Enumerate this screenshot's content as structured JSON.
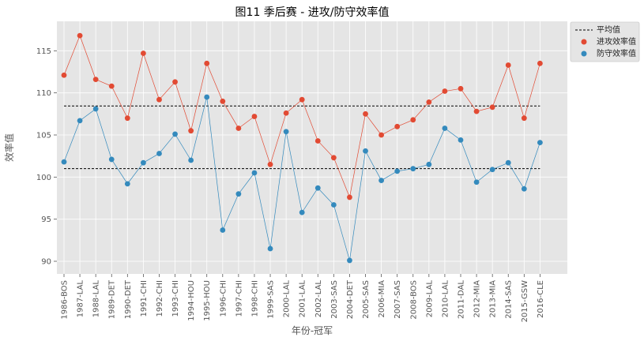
{
  "chart_data": {
    "type": "line",
    "title": "图11 季后赛 - 进攻/防守效率值",
    "xlabel": "年份-冠军",
    "ylabel": "效率值",
    "categories": [
      "1986-BOS",
      "1987-LAL",
      "1988-LAL",
      "1989-DET",
      "1990-DET",
      "1991-CHI",
      "1992-CHI",
      "1993-CHI",
      "1994-HOU",
      "1995-HOU",
      "1996-CHI",
      "1997-CHI",
      "1998-CHI",
      "1999-SAS",
      "2000-LAL",
      "2001-LAL",
      "2002-LAL",
      "2003-SAS",
      "2004-DET",
      "2005-SAS",
      "2006-MIA",
      "2007-SAS",
      "2008-BOS",
      "2009-LAL",
      "2010-LAL",
      "2011-DAL",
      "2012-MIA",
      "2013-MIA",
      "2014-SAS",
      "2015-GSW",
      "2016-CLE"
    ],
    "ylim": [
      88.5,
      118.5
    ],
    "yticks": [
      90,
      95,
      100,
      105,
      110,
      115
    ],
    "grid": true,
    "legend_position": "outside-right",
    "series": [
      {
        "name": "进攻效率值",
        "color": "#E24A33",
        "values": [
          112.1,
          116.8,
          111.6,
          110.8,
          107.0,
          114.7,
          109.2,
          111.3,
          105.5,
          113.5,
          109.0,
          105.8,
          107.2,
          101.5,
          107.6,
          109.2,
          104.3,
          102.3,
          97.6,
          107.5,
          105.0,
          106.0,
          106.8,
          108.9,
          110.2,
          110.5,
          107.8,
          108.3,
          113.3,
          107.0,
          113.5
        ]
      },
      {
        "name": "防守效率值",
        "color": "#348ABD",
        "values": [
          101.8,
          106.7,
          108.1,
          102.1,
          99.2,
          101.7,
          102.8,
          105.1,
          102.0,
          109.5,
          93.7,
          98.0,
          100.5,
          91.5,
          105.4,
          95.8,
          98.7,
          96.7,
          90.1,
          103.1,
          99.6,
          100.7,
          101.0,
          101.5,
          105.8,
          104.4,
          99.4,
          100.9,
          101.7,
          98.6,
          104.1
        ]
      }
    ],
    "reference_lines": {
      "name": "平均值",
      "color": "#000000",
      "values": [
        108.45,
        101.0
      ]
    }
  }
}
